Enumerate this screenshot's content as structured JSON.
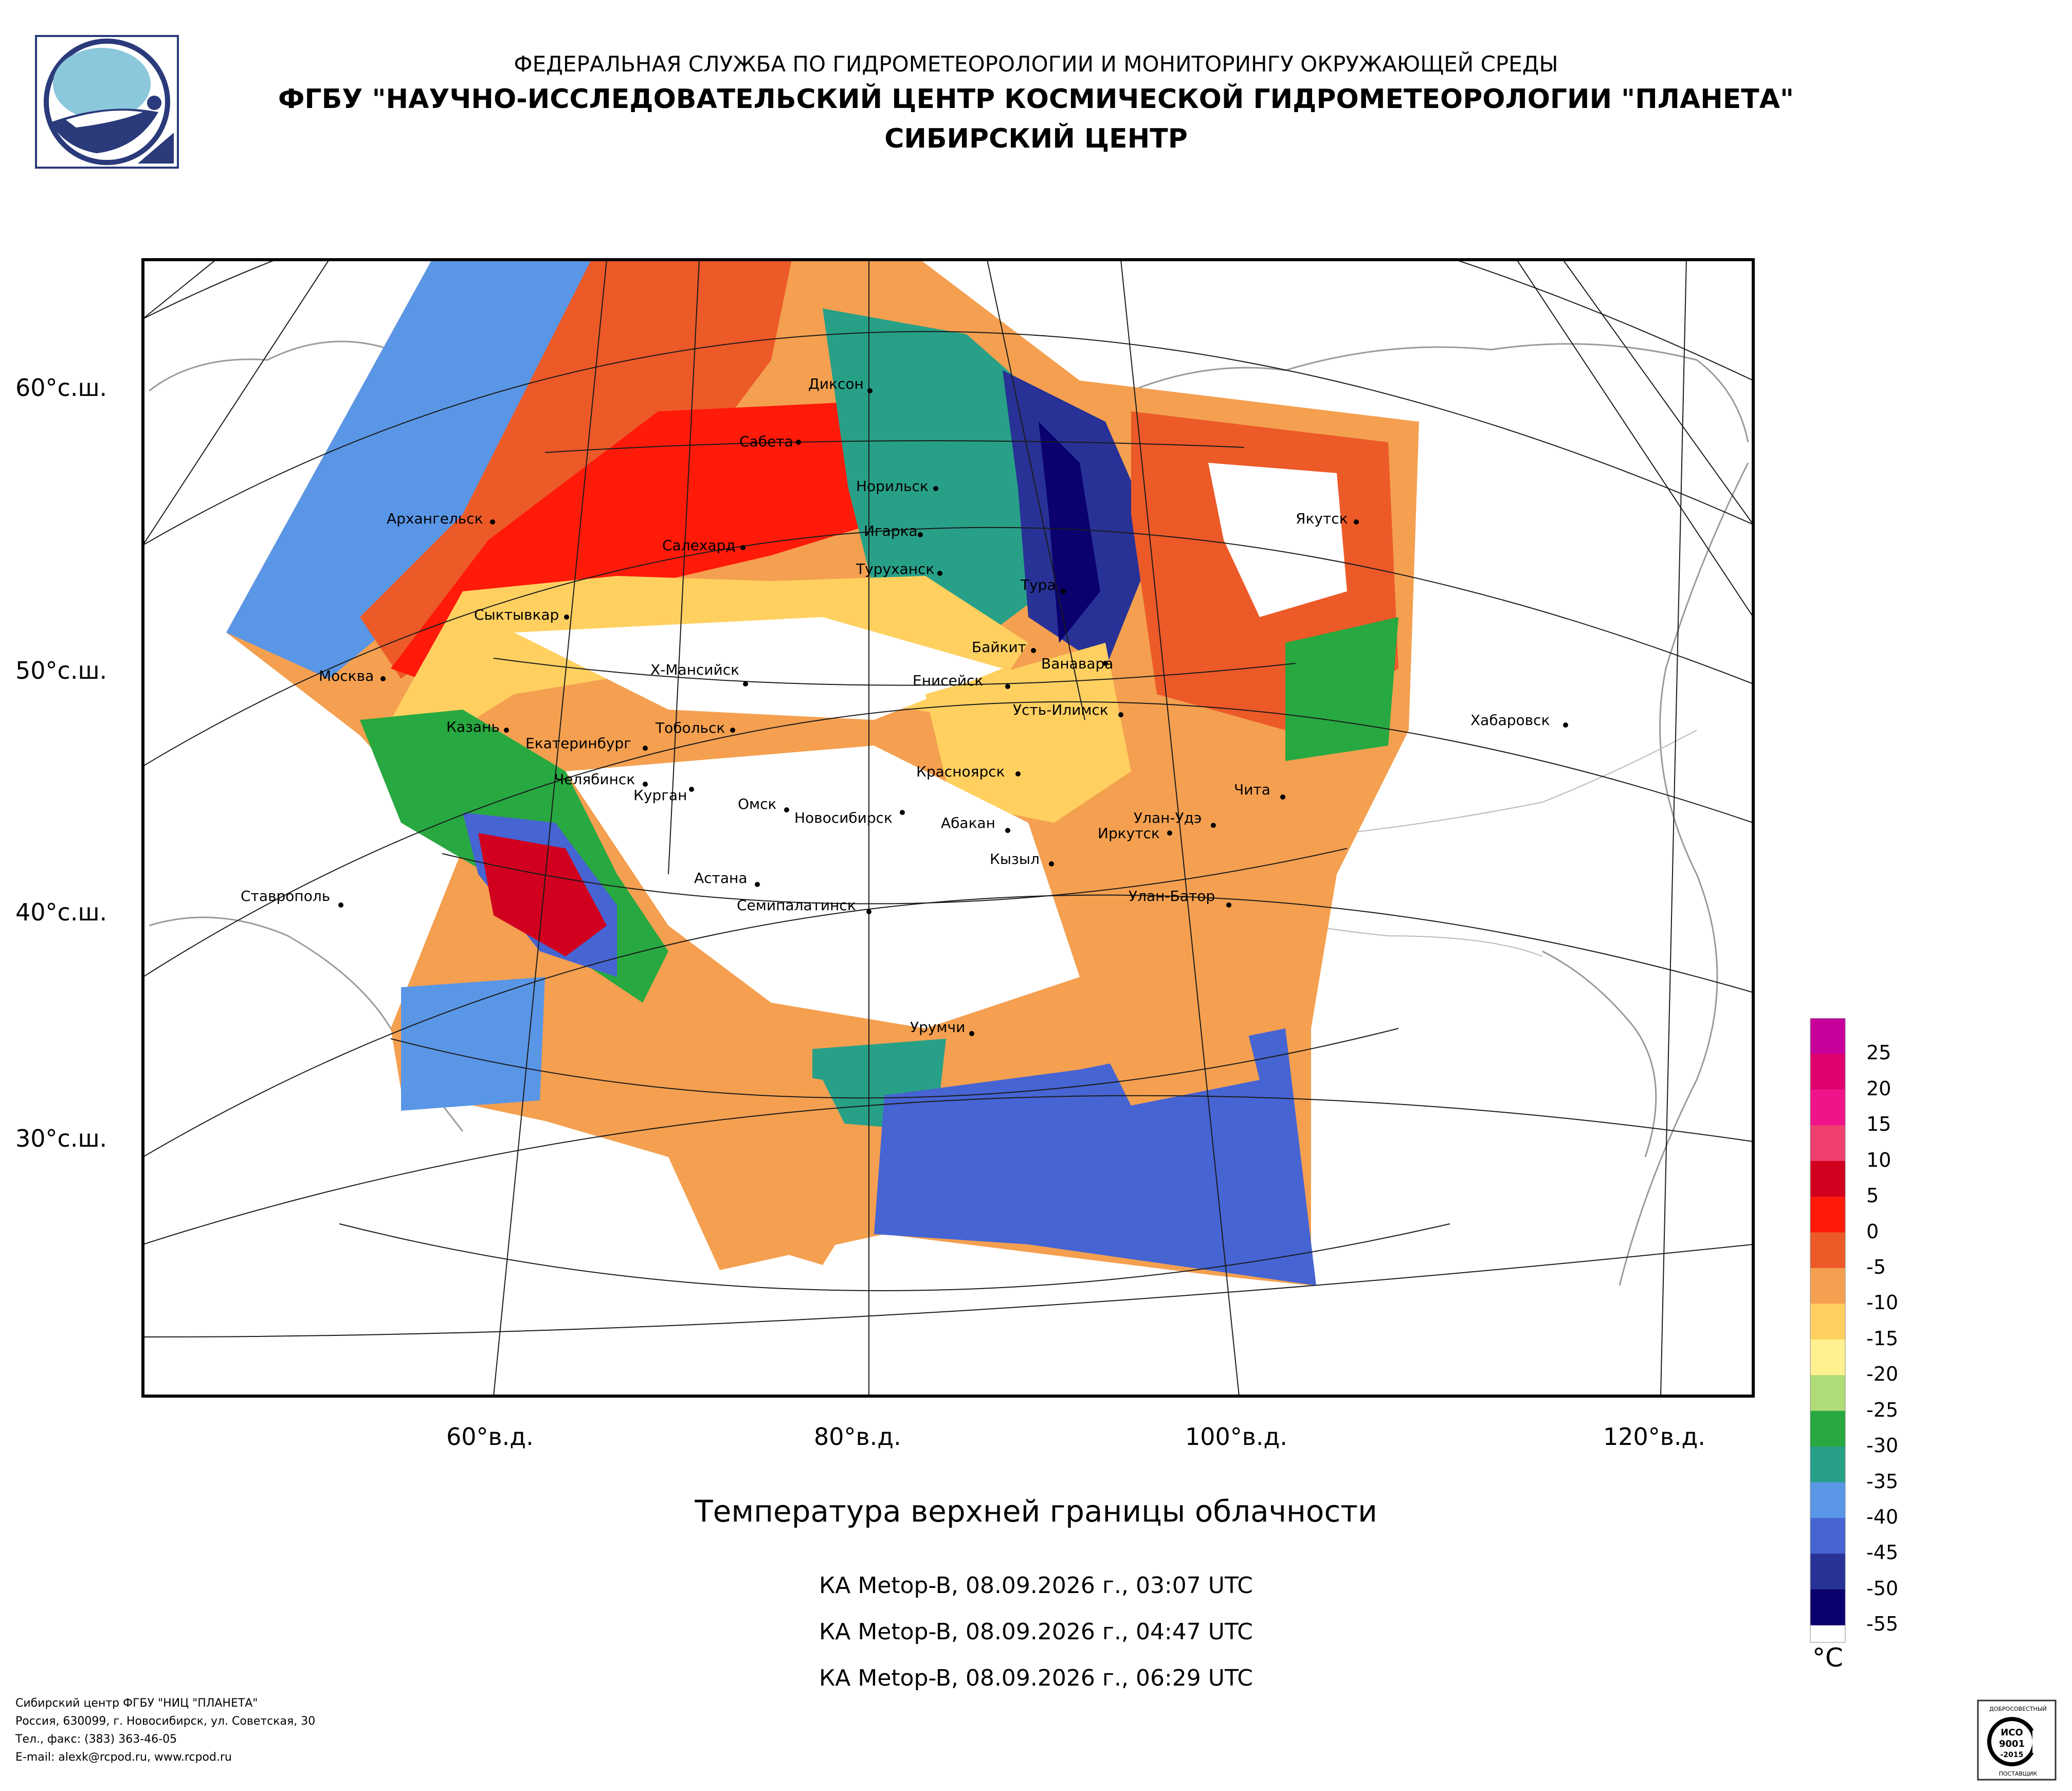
{
  "header": {
    "agency": "ФЕДЕРАЛЬНАЯ СЛУЖБА ПО ГИДРОМЕТЕОРОЛОГИИ И МОНИТОРИНГУ ОКРУЖАЮЩЕЙ СРЕДЫ",
    "institute": "ФГБУ \"НАУЧНО-ИССЛЕДОВАТЕЛЬСКИЙ ЦЕНТР КОСМИЧЕСКОЙ ГИДРОМЕТЕОРОЛОГИИ \"ПЛАНЕТА\"",
    "branch": "СИБИРСКИЙ ЦЕНТР"
  },
  "logo_icon": "planeta-logo-icon",
  "map": {
    "latitude_labels": [
      "60°с.ш.",
      "50°с.ш.",
      "40°с.ш.",
      "30°с.ш."
    ],
    "longitude_labels": [
      "60°в.д.",
      "80°в.д.",
      "100°в.д.",
      "120°в.д."
    ],
    "cities": [
      "Диксон",
      "Сабета",
      "Норильск",
      "Архангельск",
      "Игарка",
      "Салехард",
      "Туруханск",
      "Якутск",
      "Тура",
      "Сыктывкар",
      "Байкит",
      "Ванавара",
      "Москва",
      "Х-Мансийск",
      "Енисейск",
      "Усть-Илимск",
      "Казань",
      "Тобольск",
      "Хабаровск",
      "Екатеринбург",
      "Красноярск",
      "Челябинск",
      "Курган",
      "Чита",
      "Омск",
      "Новосибирск",
      "Абакан",
      "Улан-Удэ",
      "Иркутск",
      "Кызыл",
      "Ставрополь",
      "Астана",
      "Улан-Батор",
      "Семипалатинск",
      "Урумчи"
    ]
  },
  "legend": {
    "unit": "°C",
    "labels": [
      "25",
      "20",
      "15",
      "10",
      "5",
      "0",
      "-5",
      "-10",
      "-15",
      "-20",
      "-25",
      "-30",
      "-35",
      "-40",
      "-45",
      "-50",
      "-55"
    ],
    "colors": [
      "#c8009b",
      "#e0006e",
      "#f0148a",
      "#f04070",
      "#d0001e",
      "#ff1a0a",
      "#ec5a28",
      "#f4a050",
      "#ffd060",
      "#fff090",
      "#b0dc78",
      "#28a840",
      "#28a088",
      "#5a96e6",
      "#4664d2",
      "#283296",
      "#0a006e"
    ]
  },
  "caption": {
    "title": "Температура верхней границы облачности",
    "passes": [
      "КА Metop-B, 08.09.2026 г., 03:07 UTC",
      "КА Metop-B, 08.09.2026 г., 04:47 UTC",
      "КА Metop-B, 08.09.2026 г., 06:29 UTC"
    ]
  },
  "footer": {
    "lines": [
      "Сибирский центр ФГБУ \"НИЦ \"ПЛАНЕТА\"",
      "Россия, 630099, г. Новосибирск, ул. Советская, 30",
      "Тел., факс: (383) 363-46-05",
      "E-mail: alexk@rcpod.ru, www.rcpod.ru"
    ]
  },
  "certificate": {
    "top": "ДОБРОСОВЕСТНЫЙ",
    "code": "ИСО",
    "num": "9001",
    "year": "-2015",
    "bottom": "ПОСТАВЩИК"
  }
}
